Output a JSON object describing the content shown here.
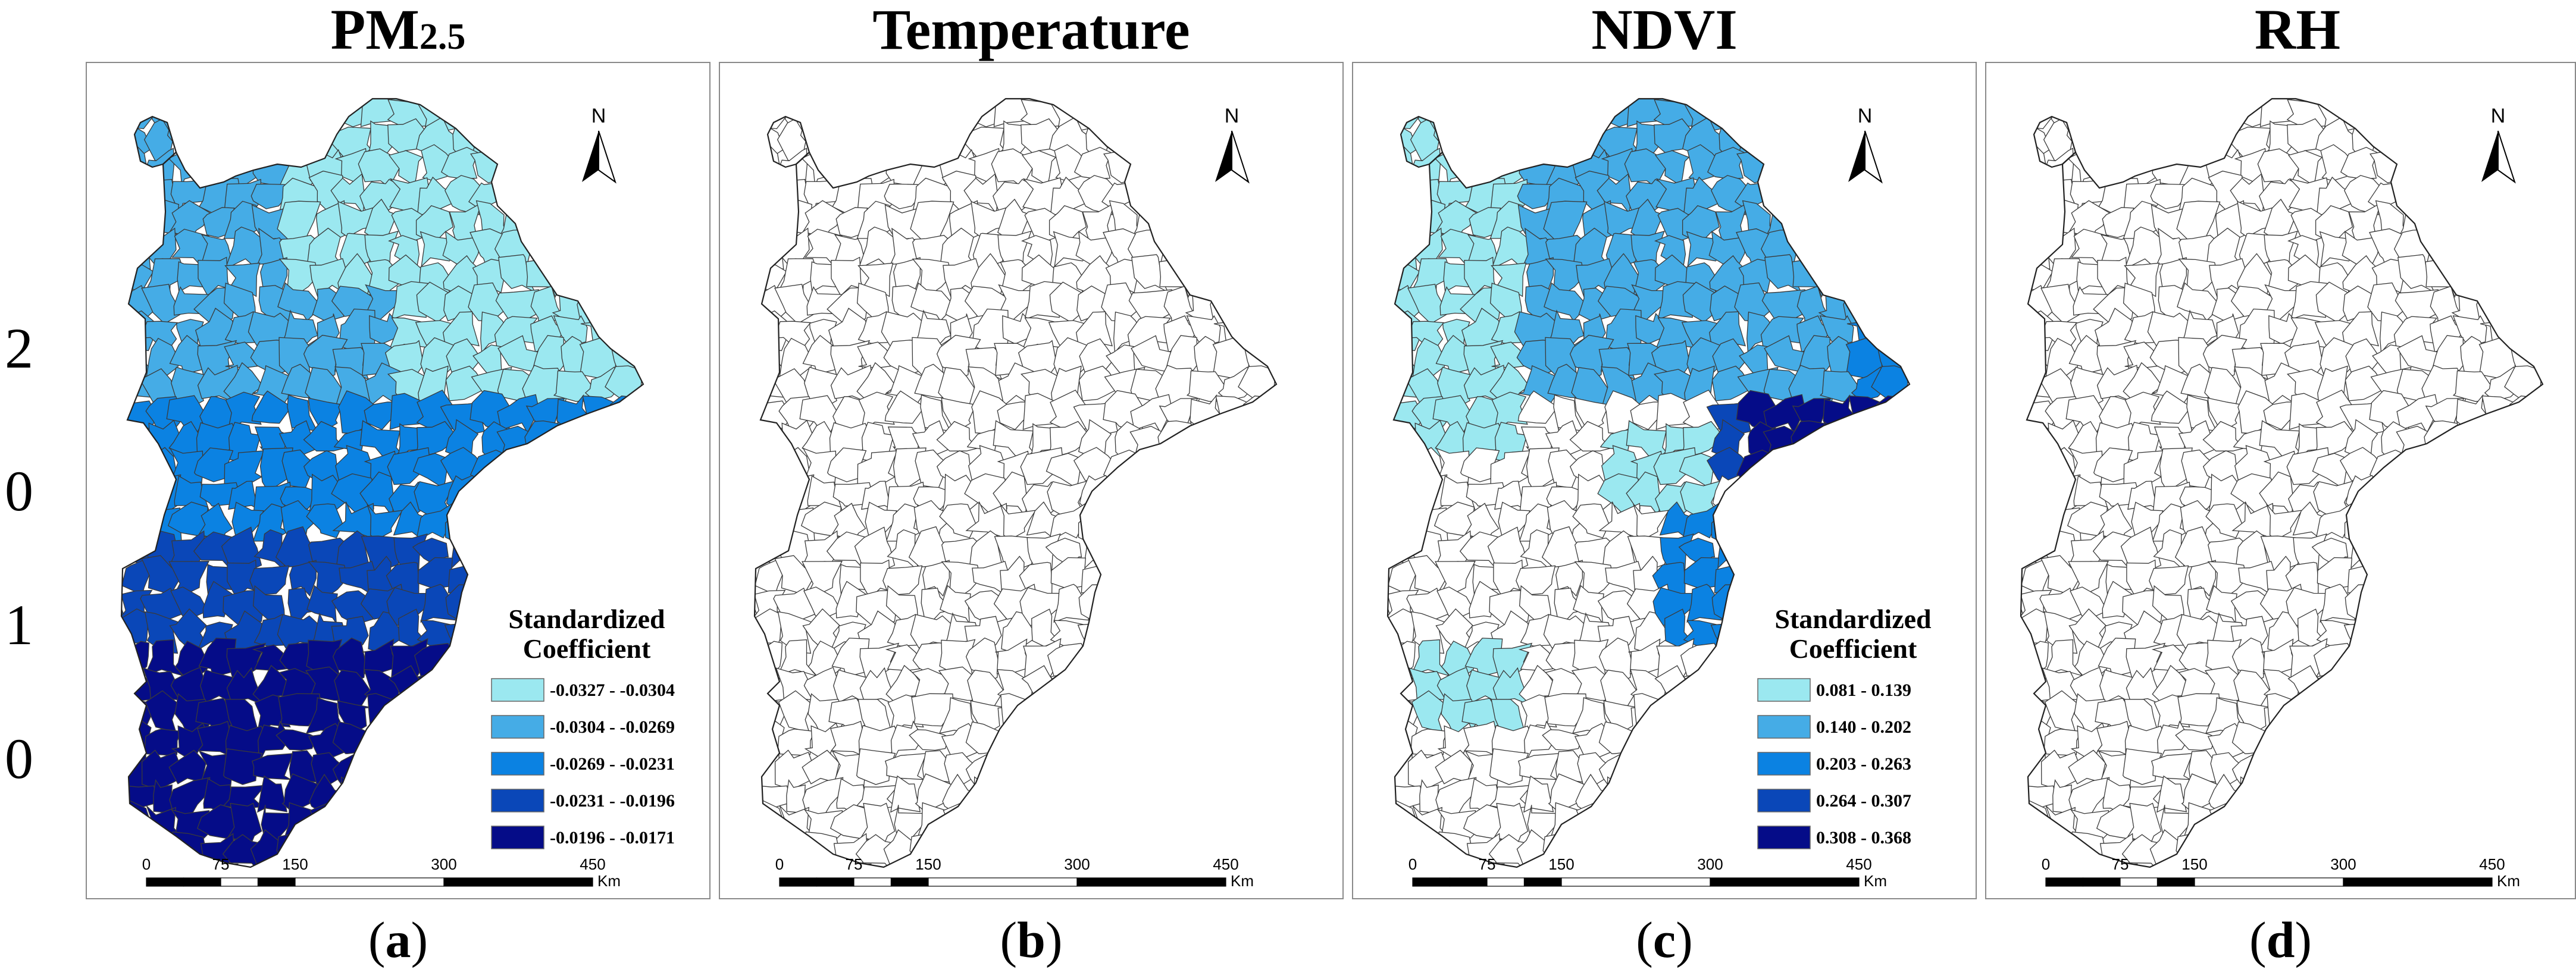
{
  "side_labels": [
    "2",
    "0",
    "1",
    "0"
  ],
  "panels": [
    {
      "title_main": "PM",
      "title_sub": "2.5",
      "caption_letter": "a",
      "legend": {
        "title_line1": "Standardized",
        "title_line2": "Coefficient",
        "items": [
          {
            "label": "-0.0327 - -0.0304",
            "color": "#9be8f0"
          },
          {
            "label": "-0.0304 - -0.0269",
            "color": "#45ace6"
          },
          {
            "label": "-0.0269 - -0.0231",
            "color": "#0b82e2"
          },
          {
            "label": "-0.0231 - -0.0196",
            "color": "#0a47b8"
          },
          {
            "label": "-0.0196 - -0.0171",
            "color": "#050c88"
          }
        ]
      },
      "fill_scheme": "pm"
    },
    {
      "title_main": "Temperature",
      "title_sub": "",
      "caption_letter": "b",
      "legend": null,
      "fill_scheme": "none"
    },
    {
      "title_main": "NDVI",
      "title_sub": "",
      "caption_letter": "c",
      "legend": {
        "title_line1": "Standardized",
        "title_line2": "Coefficient",
        "items": [
          {
            "label": "0.081 - 0.139",
            "color": "#9be8f0"
          },
          {
            "label": "0.140 - 0.202",
            "color": "#45ace6"
          },
          {
            "label": "0.203 - 0.263",
            "color": "#0b82e2"
          },
          {
            "label": "0.264 - 0.307",
            "color": "#0a47b8"
          },
          {
            "label": "0.308 - 0.368",
            "color": "#050c88"
          }
        ]
      },
      "fill_scheme": "ndvi"
    },
    {
      "title_main": "RH",
      "title_sub": "",
      "caption_letter": "d",
      "legend": null,
      "fill_scheme": "none"
    }
  ],
  "north_label": "N",
  "scale_bar": {
    "ticks": [
      "0",
      "75",
      "150",
      "300",
      "450"
    ],
    "unit": "Km"
  }
}
